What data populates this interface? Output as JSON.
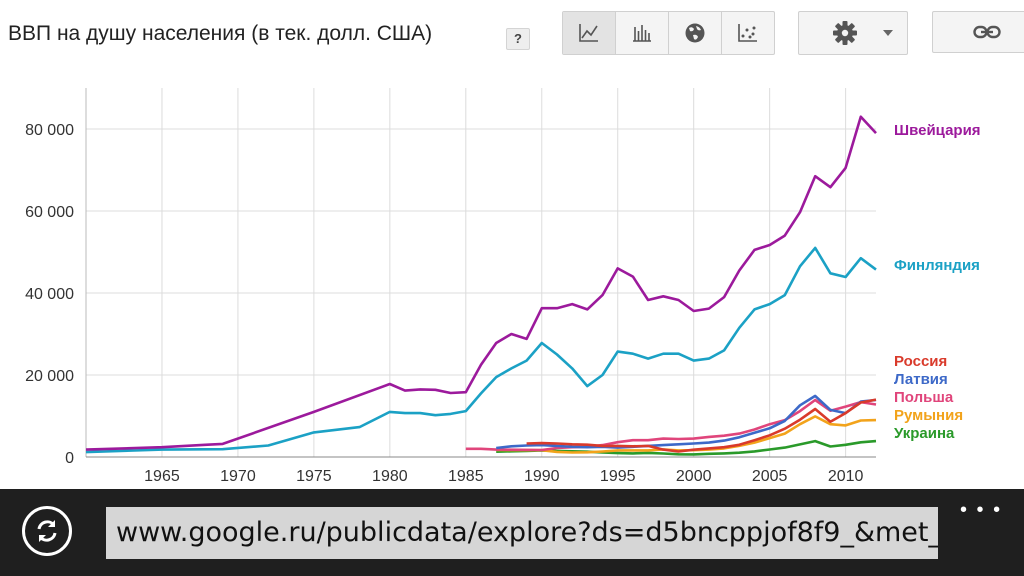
{
  "title": "ВВП на душу населения (в тек. долл. США)",
  "help_label": "?",
  "toolbar": {
    "views": [
      {
        "name": "line-chart-view",
        "icon": "line-chart-icon",
        "active": true
      },
      {
        "name": "bar-chart-view",
        "icon": "bar-chart-icon",
        "active": false
      },
      {
        "name": "map-view",
        "icon": "globe-icon",
        "active": false
      },
      {
        "name": "scatter-view",
        "icon": "scatter-icon",
        "active": false
      }
    ],
    "settings_icon": "gear-icon",
    "link_icon": "link-icon"
  },
  "chart_data": {
    "type": "line",
    "title": "ВВП на душу населения (в тек. долл. США)",
    "xlim": [
      1960,
      2012
    ],
    "ylim": [
      0,
      90000
    ],
    "x_ticks": [
      1965,
      1970,
      1975,
      1980,
      1985,
      1990,
      1995,
      2000,
      2005,
      2010
    ],
    "y_ticks": [
      0,
      20000,
      40000,
      60000,
      80000
    ],
    "y_tick_labels": [
      "0",
      "20 000",
      "40 000",
      "60 000",
      "80 000"
    ],
    "grid": true,
    "legend": "right",
    "series": [
      {
        "name": "Швейцария",
        "color": "#9c1a9c",
        "points": [
          [
            1960,
            1800
          ],
          [
            1965,
            2400
          ],
          [
            1968,
            3000
          ],
          [
            1969,
            3200
          ],
          [
            1975,
            11000
          ],
          [
            1980,
            17800
          ],
          [
            1981,
            16200
          ],
          [
            1982,
            16500
          ],
          [
            1983,
            16400
          ],
          [
            1984,
            15600
          ],
          [
            1985,
            15800
          ],
          [
            1986,
            22500
          ],
          [
            1987,
            27800
          ],
          [
            1988,
            30000
          ],
          [
            1989,
            28800
          ],
          [
            1990,
            36300
          ],
          [
            1991,
            36300
          ],
          [
            1992,
            37300
          ],
          [
            1993,
            36000
          ],
          [
            1994,
            39500
          ],
          [
            1995,
            46000
          ],
          [
            1996,
            44000
          ],
          [
            1997,
            38300
          ],
          [
            1998,
            39200
          ],
          [
            1999,
            38300
          ],
          [
            2000,
            35600
          ],
          [
            2001,
            36200
          ],
          [
            2002,
            39000
          ],
          [
            2003,
            45500
          ],
          [
            2004,
            50500
          ],
          [
            2005,
            51700
          ],
          [
            2006,
            54000
          ],
          [
            2007,
            59700
          ],
          [
            2008,
            68500
          ],
          [
            2009,
            65800
          ],
          [
            2010,
            70500
          ],
          [
            2011,
            83000
          ],
          [
            2012,
            79000
          ]
        ]
      },
      {
        "name": "Финляндия",
        "color": "#1ba1c5",
        "points": [
          [
            1960,
            1200
          ],
          [
            1965,
            1800
          ],
          [
            1969,
            1900
          ],
          [
            1972,
            2800
          ],
          [
            1975,
            6000
          ],
          [
            1978,
            7300
          ],
          [
            1980,
            11000
          ],
          [
            1981,
            10700
          ],
          [
            1982,
            10700
          ],
          [
            1983,
            10200
          ],
          [
            1984,
            10500
          ],
          [
            1985,
            11200
          ],
          [
            1986,
            15500
          ],
          [
            1987,
            19500
          ],
          [
            1988,
            21600
          ],
          [
            1989,
            23500
          ],
          [
            1990,
            27800
          ],
          [
            1991,
            25000
          ],
          [
            1992,
            21600
          ],
          [
            1993,
            17300
          ],
          [
            1994,
            20000
          ],
          [
            1995,
            25700
          ],
          [
            1996,
            25200
          ],
          [
            1997,
            24000
          ],
          [
            1998,
            25200
          ],
          [
            1999,
            25200
          ],
          [
            2000,
            23500
          ],
          [
            2001,
            24000
          ],
          [
            2002,
            26000
          ],
          [
            2003,
            31500
          ],
          [
            2004,
            36000
          ],
          [
            2005,
            37300
          ],
          [
            2006,
            39500
          ],
          [
            2007,
            46500
          ],
          [
            2008,
            51000
          ],
          [
            2009,
            44800
          ],
          [
            2010,
            43900
          ],
          [
            2011,
            48500
          ],
          [
            2012,
            45700
          ]
        ]
      },
      {
        "name": "Россия",
        "color": "#d93a2b",
        "points": [
          [
            1989,
            3300
          ],
          [
            1990,
            3400
          ],
          [
            1991,
            3300
          ],
          [
            1992,
            3100
          ],
          [
            1993,
            3000
          ],
          [
            1994,
            2700
          ],
          [
            1995,
            2700
          ],
          [
            1996,
            2600
          ],
          [
            1997,
            2700
          ],
          [
            1998,
            1800
          ],
          [
            1999,
            1330
          ],
          [
            2000,
            1770
          ],
          [
            2001,
            2100
          ],
          [
            2002,
            2380
          ],
          [
            2003,
            2980
          ],
          [
            2004,
            4100
          ],
          [
            2005,
            5300
          ],
          [
            2006,
            6900
          ],
          [
            2007,
            9100
          ],
          [
            2008,
            11700
          ],
          [
            2009,
            8600
          ],
          [
            2010,
            10700
          ],
          [
            2011,
            13300
          ],
          [
            2012,
            14000
          ]
        ]
      },
      {
        "name": "Латвия",
        "color": "#3d69c8",
        "points": [
          [
            1987,
            2200
          ],
          [
            1988,
            2600
          ],
          [
            1989,
            2800
          ],
          [
            1990,
            2900
          ],
          [
            1991,
            2700
          ],
          [
            1992,
            2500
          ],
          [
            1993,
            2400
          ],
          [
            1994,
            2500
          ],
          [
            1995,
            2300
          ],
          [
            1996,
            2500
          ],
          [
            1997,
            2700
          ],
          [
            1998,
            2900
          ],
          [
            1999,
            3100
          ],
          [
            2000,
            3300
          ],
          [
            2001,
            3500
          ],
          [
            2002,
            4000
          ],
          [
            2003,
            4800
          ],
          [
            2004,
            5900
          ],
          [
            2005,
            7000
          ],
          [
            2006,
            8800
          ],
          [
            2007,
            12600
          ],
          [
            2008,
            14900
          ],
          [
            2009,
            11500
          ],
          [
            2010,
            10700
          ],
          [
            2011,
            13500
          ],
          [
            2012,
            13900
          ]
        ]
      },
      {
        "name": "Польша",
        "color": "#e0457b",
        "points": [
          [
            1985,
            2000
          ],
          [
            1986,
            2000
          ],
          [
            1987,
            1800
          ],
          [
            1990,
            1700
          ],
          [
            1991,
            2200
          ],
          [
            1992,
            2400
          ],
          [
            1993,
            2500
          ],
          [
            1994,
            2900
          ],
          [
            1995,
            3600
          ],
          [
            1996,
            4100
          ],
          [
            1997,
            4100
          ],
          [
            1998,
            4500
          ],
          [
            1999,
            4400
          ],
          [
            2000,
            4500
          ],
          [
            2001,
            4900
          ],
          [
            2002,
            5200
          ],
          [
            2003,
            5700
          ],
          [
            2004,
            6700
          ],
          [
            2005,
            8000
          ],
          [
            2006,
            9000
          ],
          [
            2007,
            11200
          ],
          [
            2008,
            13900
          ],
          [
            2009,
            11300
          ],
          [
            2010,
            12300
          ],
          [
            2011,
            13400
          ],
          [
            2012,
            12800
          ]
        ]
      },
      {
        "name": "Румыния",
        "color": "#f2a31b",
        "points": [
          [
            1987,
            1700
          ],
          [
            1990,
            1650
          ],
          [
            1991,
            1250
          ],
          [
            1992,
            1100
          ],
          [
            1993,
            1150
          ],
          [
            1994,
            1350
          ],
          [
            1995,
            1600
          ],
          [
            1996,
            1600
          ],
          [
            1997,
            1600
          ],
          [
            1998,
            1850
          ],
          [
            1999,
            1600
          ],
          [
            2000,
            1650
          ],
          [
            2001,
            1800
          ],
          [
            2002,
            2100
          ],
          [
            2003,
            2700
          ],
          [
            2004,
            3500
          ],
          [
            2005,
            4600
          ],
          [
            2006,
            5700
          ],
          [
            2007,
            8000
          ],
          [
            2008,
            9900
          ],
          [
            2009,
            8000
          ],
          [
            2010,
            7700
          ],
          [
            2011,
            8900
          ],
          [
            2012,
            9000
          ]
        ]
      },
      {
        "name": "Украина",
        "color": "#2a9a2a",
        "points": [
          [
            1987,
            1300
          ],
          [
            1988,
            1400
          ],
          [
            1989,
            1500
          ],
          [
            1990,
            1600
          ],
          [
            1991,
            1500
          ],
          [
            1992,
            1400
          ],
          [
            1993,
            1300
          ],
          [
            1994,
            1100
          ],
          [
            1995,
            950
          ],
          [
            1996,
            880
          ],
          [
            1997,
            990
          ],
          [
            1998,
            850
          ],
          [
            1999,
            650
          ],
          [
            2000,
            640
          ],
          [
            2001,
            790
          ],
          [
            2002,
            880
          ],
          [
            2003,
            1050
          ],
          [
            2004,
            1370
          ],
          [
            2005,
            1830
          ],
          [
            2006,
            2300
          ],
          [
            2007,
            3070
          ],
          [
            2008,
            3890
          ],
          [
            2009,
            2550
          ],
          [
            2010,
            2970
          ],
          [
            2011,
            3580
          ],
          [
            2012,
            3870
          ]
        ]
      }
    ]
  },
  "browser": {
    "url": "www.google.ru/publicdata/explore?ds=d5bncppjof8f9_&met_",
    "refresh_icon": "refresh-icon",
    "more_label": "• • •"
  }
}
